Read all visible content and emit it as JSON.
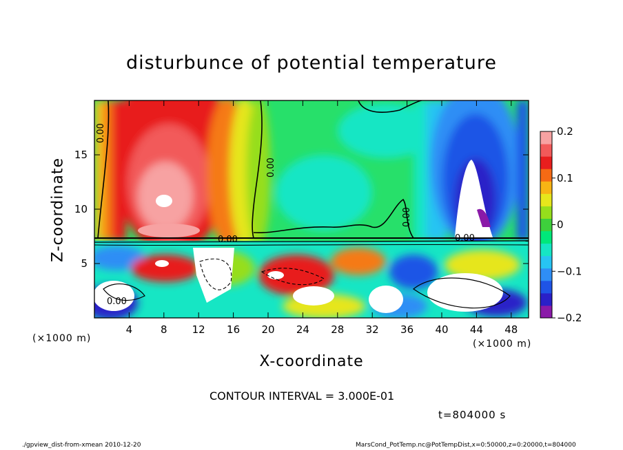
{
  "chart_data": {
    "type": "heatmap",
    "title": "disturbunce of potential temperature",
    "xlabel": "X-coordinate",
    "ylabel": "Z-coordinate",
    "x_unit_left": "(×1000 m)",
    "x_unit_right": "(×1000 m)",
    "x_range": [
      0,
      50
    ],
    "y_range": [
      0,
      20
    ],
    "x_ticks": [
      4,
      8,
      12,
      16,
      20,
      24,
      28,
      32,
      36,
      40,
      44,
      48
    ],
    "y_ticks": [
      5,
      10,
      15
    ],
    "colorbar": {
      "range": [
        -0.2,
        0.2
      ],
      "ticks": [
        {
          "value": 0.2,
          "label": "0.2"
        },
        {
          "value": 0.1,
          "label": "0.1"
        },
        {
          "value": 0,
          "label": "0"
        },
        {
          "value": -0.1,
          "label": "−0.1"
        },
        {
          "value": -0.2,
          "label": "−0.2"
        }
      ],
      "colors": [
        "#8a1aa8",
        "#2a20c8",
        "#1f54e6",
        "#2f8ef5",
        "#27c4f2",
        "#16e6c4",
        "#00e87a",
        "#3ed03c",
        "#96de1c",
        "#e6e61c",
        "#f7b414",
        "#f56a14",
        "#e81e1e",
        "#f25a5a",
        "#f7a2a2"
      ]
    },
    "contour_labels": [
      "0.00",
      "0.00",
      "0.00",
      "0.00",
      "0.00",
      "0.00"
    ],
    "contour_interval": "CONTOUR INTERVAL = 3.000E-01",
    "time": "t=804000 s"
  },
  "footer": {
    "left": "./gpview_dist-from-xmean   2010-12-20",
    "right": "MarsCond_PotTemp.nc@PotTempDist,x=0:50000,z=0:20000,t=804000"
  }
}
